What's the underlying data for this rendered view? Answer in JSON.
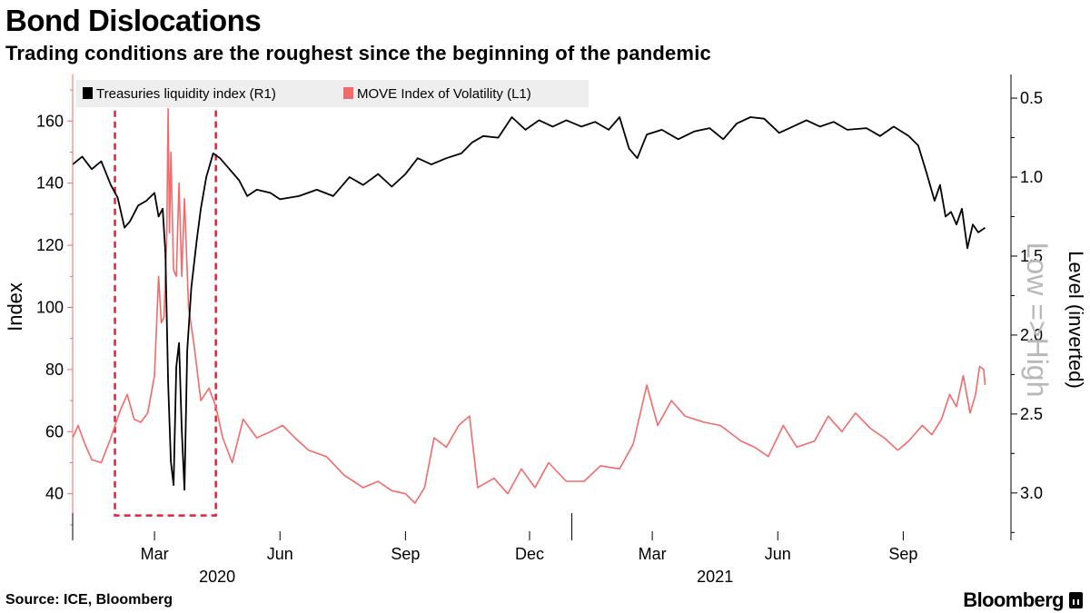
{
  "title": "Bond Dislocations",
  "subtitle": "Trading conditions are the roughest since the beginning of the pandemic",
  "source": "Source: ICE, Bloomberg",
  "brand": "Bloomberg",
  "chart_data": {
    "type": "line",
    "x_start": "2020-01-01",
    "x_end": "2021-11-01",
    "x_ticks": [
      {
        "date": "2020-03-01",
        "label": "Mar"
      },
      {
        "date": "2020-06-01",
        "label": "Jun"
      },
      {
        "date": "2020-09-01",
        "label": "Sep"
      },
      {
        "date": "2020-12-01",
        "label": "Dec"
      },
      {
        "date": "2021-03-01",
        "label": "Mar"
      },
      {
        "date": "2021-06-01",
        "label": "Jun"
      },
      {
        "date": "2021-09-01",
        "label": "Sep"
      }
    ],
    "year_labels": [
      {
        "date": "2020-01-01",
        "label": "2020"
      },
      {
        "date": "2021-01-01",
        "label": "2021"
      }
    ],
    "left_axis": {
      "label": "Index",
      "ylim": [
        25,
        175
      ],
      "ticks": [
        40,
        60,
        80,
        100,
        120,
        140,
        160
      ]
    },
    "right_axis": {
      "label": "Level (inverted)",
      "ylim": [
        3.3,
        0.35
      ],
      "inverted": true,
      "ticks": [
        "0.5",
        "1.0",
        "1.5",
        "2.0",
        "2.5",
        "3.0"
      ]
    },
    "annotation": "Low =>High",
    "highlight_box": {
      "x0": "2020-02-01",
      "x1": "2020-04-15",
      "y0": 33,
      "y1": 166
    },
    "colors": {
      "liquidity": "#000000",
      "move": "#f36a6a",
      "box": "#e0223d",
      "legend_bg": "#eeeeee"
    },
    "series": [
      {
        "name": "Treasuries liquidity index (R1)",
        "axis": "right",
        "points": [
          [
            "2020-01-01",
            0.92
          ],
          [
            "2020-01-08",
            0.87
          ],
          [
            "2020-01-15",
            0.95
          ],
          [
            "2020-01-22",
            0.9
          ],
          [
            "2020-01-29",
            1.05
          ],
          [
            "2020-02-03",
            1.13
          ],
          [
            "2020-02-08",
            1.32
          ],
          [
            "2020-02-12",
            1.28
          ],
          [
            "2020-02-18",
            1.18
          ],
          [
            "2020-02-24",
            1.15
          ],
          [
            "2020-03-01",
            1.1
          ],
          [
            "2020-03-04",
            1.25
          ],
          [
            "2020-03-07",
            1.2
          ],
          [
            "2020-03-09",
            1.48
          ],
          [
            "2020-03-11",
            2.3
          ],
          [
            "2020-03-13",
            2.8
          ],
          [
            "2020-03-15",
            2.95
          ],
          [
            "2020-03-17",
            2.2
          ],
          [
            "2020-03-19",
            2.05
          ],
          [
            "2020-03-21",
            2.6
          ],
          [
            "2020-03-23",
            2.98
          ],
          [
            "2020-03-25",
            2.1
          ],
          [
            "2020-03-28",
            1.7
          ],
          [
            "2020-04-01",
            1.4
          ],
          [
            "2020-04-04",
            1.2
          ],
          [
            "2020-04-08",
            1.0
          ],
          [
            "2020-04-13",
            0.85
          ],
          [
            "2020-04-18",
            0.88
          ],
          [
            "2020-04-25",
            0.95
          ],
          [
            "2020-05-02",
            1.02
          ],
          [
            "2020-05-08",
            1.12
          ],
          [
            "2020-05-15",
            1.08
          ],
          [
            "2020-05-25",
            1.1
          ],
          [
            "2020-06-01",
            1.14
          ],
          [
            "2020-06-15",
            1.12
          ],
          [
            "2020-06-28",
            1.08
          ],
          [
            "2020-07-10",
            1.12
          ],
          [
            "2020-07-22",
            1.0
          ],
          [
            "2020-08-01",
            1.05
          ],
          [
            "2020-08-12",
            0.98
          ],
          [
            "2020-08-22",
            1.06
          ],
          [
            "2020-09-01",
            0.98
          ],
          [
            "2020-09-10",
            0.88
          ],
          [
            "2020-09-20",
            0.92
          ],
          [
            "2020-10-01",
            0.88
          ],
          [
            "2020-10-12",
            0.85
          ],
          [
            "2020-10-20",
            0.78
          ],
          [
            "2020-10-28",
            0.74
          ],
          [
            "2020-11-08",
            0.75
          ],
          [
            "2020-11-18",
            0.62
          ],
          [
            "2020-11-28",
            0.7
          ],
          [
            "2020-12-08",
            0.64
          ],
          [
            "2020-12-18",
            0.68
          ],
          [
            "2020-12-28",
            0.64
          ],
          [
            "2021-01-08",
            0.68
          ],
          [
            "2021-01-18",
            0.65
          ],
          [
            "2021-01-28",
            0.7
          ],
          [
            "2021-02-05",
            0.62
          ],
          [
            "2021-02-12",
            0.82
          ],
          [
            "2021-02-18",
            0.88
          ],
          [
            "2021-02-25",
            0.73
          ],
          [
            "2021-03-08",
            0.7
          ],
          [
            "2021-03-20",
            0.76
          ],
          [
            "2021-04-01",
            0.71
          ],
          [
            "2021-04-12",
            0.69
          ],
          [
            "2021-04-22",
            0.76
          ],
          [
            "2021-05-02",
            0.66
          ],
          [
            "2021-05-12",
            0.62
          ],
          [
            "2021-05-22",
            0.63
          ],
          [
            "2021-06-02",
            0.72
          ],
          [
            "2021-06-12",
            0.68
          ],
          [
            "2021-06-22",
            0.64
          ],
          [
            "2021-07-02",
            0.68
          ],
          [
            "2021-07-12",
            0.65
          ],
          [
            "2021-07-22",
            0.7
          ],
          [
            "2021-08-05",
            0.69
          ],
          [
            "2021-08-15",
            0.74
          ],
          [
            "2021-08-25",
            0.68
          ],
          [
            "2021-09-05",
            0.74
          ],
          [
            "2021-09-12",
            0.8
          ],
          [
            "2021-09-18",
            0.97
          ],
          [
            "2021-09-24",
            1.15
          ],
          [
            "2021-09-28",
            1.05
          ],
          [
            "2021-10-02",
            1.25
          ],
          [
            "2021-10-06",
            1.22
          ],
          [
            "2021-10-10",
            1.3
          ],
          [
            "2021-10-14",
            1.2
          ],
          [
            "2021-10-18",
            1.45
          ],
          [
            "2021-10-22",
            1.3
          ],
          [
            "2021-10-26",
            1.35
          ],
          [
            "2021-10-31",
            1.32
          ]
        ]
      },
      {
        "name": "MOVE Index of Volatility (L1)",
        "axis": "left",
        "points": [
          [
            "2020-01-01",
            58
          ],
          [
            "2020-01-05",
            62
          ],
          [
            "2020-01-10",
            56
          ],
          [
            "2020-01-15",
            51
          ],
          [
            "2020-01-22",
            50
          ],
          [
            "2020-01-29",
            58
          ],
          [
            "2020-02-05",
            67
          ],
          [
            "2020-02-10",
            72
          ],
          [
            "2020-02-15",
            64
          ],
          [
            "2020-02-20",
            63
          ],
          [
            "2020-02-25",
            66
          ],
          [
            "2020-03-01",
            78
          ],
          [
            "2020-03-04",
            110
          ],
          [
            "2020-03-06",
            95
          ],
          [
            "2020-03-08",
            97
          ],
          [
            "2020-03-10",
            123
          ],
          [
            "2020-03-11",
            164
          ],
          [
            "2020-03-12",
            124
          ],
          [
            "2020-03-13",
            150
          ],
          [
            "2020-03-15",
            112
          ],
          [
            "2020-03-17",
            110
          ],
          [
            "2020-03-19",
            140
          ],
          [
            "2020-03-21",
            110
          ],
          [
            "2020-03-23",
            135
          ],
          [
            "2020-03-26",
            100
          ],
          [
            "2020-03-30",
            88
          ],
          [
            "2020-04-04",
            70
          ],
          [
            "2020-04-10",
            74
          ],
          [
            "2020-04-15",
            68
          ],
          [
            "2020-04-20",
            58
          ],
          [
            "2020-04-27",
            50
          ],
          [
            "2020-05-05",
            64
          ],
          [
            "2020-05-15",
            58
          ],
          [
            "2020-05-25",
            60
          ],
          [
            "2020-06-03",
            62
          ],
          [
            "2020-06-12",
            58
          ],
          [
            "2020-06-22",
            54
          ],
          [
            "2020-07-05",
            52
          ],
          [
            "2020-07-18",
            46
          ],
          [
            "2020-08-01",
            42
          ],
          [
            "2020-08-12",
            44
          ],
          [
            "2020-08-22",
            41
          ],
          [
            "2020-09-01",
            40
          ],
          [
            "2020-09-08",
            37
          ],
          [
            "2020-09-15",
            42
          ],
          [
            "2020-09-22",
            58
          ],
          [
            "2020-10-01",
            55
          ],
          [
            "2020-10-10",
            62
          ],
          [
            "2020-10-18",
            65
          ],
          [
            "2020-10-24",
            42
          ],
          [
            "2020-11-05",
            45
          ],
          [
            "2020-11-15",
            40
          ],
          [
            "2020-11-25",
            48
          ],
          [
            "2020-12-05",
            42
          ],
          [
            "2020-12-15",
            50
          ],
          [
            "2020-12-28",
            44
          ],
          [
            "2021-01-10",
            44
          ],
          [
            "2021-01-22",
            49
          ],
          [
            "2021-02-05",
            48
          ],
          [
            "2021-02-15",
            56
          ],
          [
            "2021-02-25",
            75
          ],
          [
            "2021-03-05",
            62
          ],
          [
            "2021-03-15",
            70
          ],
          [
            "2021-03-25",
            65
          ],
          [
            "2021-04-08",
            63
          ],
          [
            "2021-04-20",
            62
          ],
          [
            "2021-05-05",
            57
          ],
          [
            "2021-05-15",
            55
          ],
          [
            "2021-05-25",
            52
          ],
          [
            "2021-06-05",
            62
          ],
          [
            "2021-06-15",
            55
          ],
          [
            "2021-06-28",
            57
          ],
          [
            "2021-07-08",
            65
          ],
          [
            "2021-07-18",
            60
          ],
          [
            "2021-07-28",
            66
          ],
          [
            "2021-08-08",
            61
          ],
          [
            "2021-08-18",
            58
          ],
          [
            "2021-08-28",
            54
          ],
          [
            "2021-09-05",
            57
          ],
          [
            "2021-09-15",
            62
          ],
          [
            "2021-09-22",
            59
          ],
          [
            "2021-09-29",
            64
          ],
          [
            "2021-10-05",
            72
          ],
          [
            "2021-10-10",
            68
          ],
          [
            "2021-10-15",
            78
          ],
          [
            "2021-10-20",
            66
          ],
          [
            "2021-10-24",
            72
          ],
          [
            "2021-10-27",
            81
          ],
          [
            "2021-10-30",
            80
          ],
          [
            "2021-10-31",
            75
          ]
        ]
      }
    ]
  }
}
